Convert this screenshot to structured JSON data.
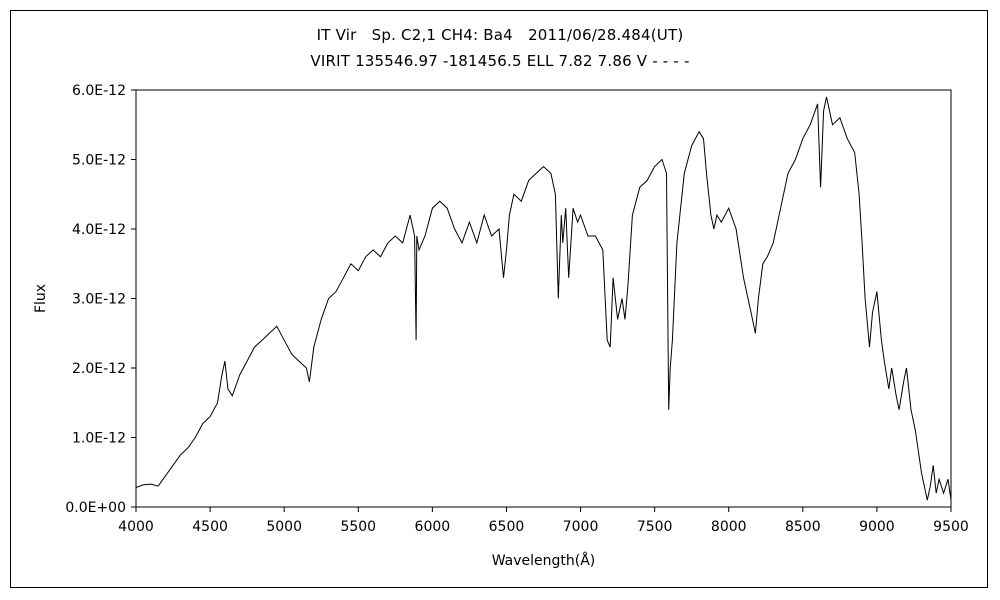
{
  "chart_data": {
    "type": "line",
    "title_line1": "IT Vir　Sp. C2,1 CH4: Ba4　2011/06/28.484(UT)",
    "title_line2": "VIRIT 135546.97 -181456.5 ELL 7.82 7.86 V - - - -",
    "xlabel": "Wavelength(Å)",
    "ylabel": "Flux",
    "xlim": [
      4000,
      9500
    ],
    "ylim": [
      0,
      6e-12
    ],
    "xticks": [
      4000,
      4500,
      5000,
      5500,
      6000,
      6500,
      7000,
      7500,
      8000,
      8500,
      9000,
      9500
    ],
    "xtick_labels": [
      "4000",
      "4500",
      "5000",
      "5500",
      "6000",
      "6500",
      "7000",
      "7500",
      "8000",
      "8500",
      "9000",
      "9500"
    ],
    "yticks": [
      0,
      1e-12,
      2e-12,
      3e-12,
      4e-12,
      5e-12,
      6e-12
    ],
    "ytick_labels": [
      "0.0E+00",
      "1.0E-12",
      "2.0E-12",
      "3.0E-12",
      "4.0E-12",
      "5.0E-12",
      "6.0E-12"
    ],
    "grid": false,
    "legend": "none",
    "line_color": "#000000",
    "series": [
      {
        "x": [
          4000,
          4050,
          4100,
          4150,
          4200,
          4250,
          4300,
          4350,
          4400,
          4450,
          4500,
          4550,
          4580,
          4600,
          4620,
          4650,
          4700,
          4750,
          4800,
          4850,
          4900,
          4950,
          5000,
          5050,
          5100,
          5150,
          5170,
          5200,
          5250,
          5300,
          5350,
          5400,
          5450,
          5500,
          5550,
          5600,
          5650,
          5700,
          5750,
          5800,
          5850,
          5880,
          5890,
          5895,
          5910,
          5950,
          6000,
          6050,
          6100,
          6150,
          6200,
          6250,
          6300,
          6350,
          6400,
          6450,
          6480,
          6500,
          6520,
          6550,
          6600,
          6650,
          6700,
          6750,
          6800,
          6830,
          6850,
          6870,
          6880,
          6900,
          6920,
          6950,
          6980,
          7000,
          7050,
          7100,
          7150,
          7180,
          7200,
          7220,
          7250,
          7280,
          7300,
          7320,
          7350,
          7400,
          7450,
          7500,
          7550,
          7580,
          7595,
          7605,
          7620,
          7650,
          7700,
          7750,
          7800,
          7830,
          7850,
          7880,
          7900,
          7920,
          7950,
          8000,
          8050,
          8100,
          8150,
          8180,
          8200,
          8230,
          8260,
          8300,
          8350,
          8400,
          8450,
          8500,
          8550,
          8600,
          8620,
          8640,
          8660,
          8700,
          8750,
          8800,
          8850,
          8880,
          8900,
          8920,
          8950,
          8970,
          9000,
          9030,
          9050,
          9080,
          9100,
          9130,
          9150,
          9180,
          9200,
          9230,
          9260,
          9280,
          9300,
          9320,
          9340,
          9360,
          9380,
          9400,
          9420,
          9450,
          9480,
          9500
        ],
        "y": [
          2.8e-13,
          3.2e-13,
          3.3e-13,
          3e-13,
          4.5e-13,
          6e-13,
          7.5e-13,
          8.5e-13,
          1e-12,
          1.2e-12,
          1.3e-12,
          1.5e-12,
          1.9e-12,
          2.1e-12,
          1.7e-12,
          1.6e-12,
          1.9e-12,
          2.1e-12,
          2.3e-12,
          2.4e-12,
          2.5e-12,
          2.6e-12,
          2.4e-12,
          2.2e-12,
          2.1e-12,
          2e-12,
          1.8e-12,
          2.3e-12,
          2.7e-12,
          3e-12,
          3.1e-12,
          3.3e-12,
          3.5e-12,
          3.4e-12,
          3.6e-12,
          3.7e-12,
          3.6e-12,
          3.8e-12,
          3.9e-12,
          3.8e-12,
          4.2e-12,
          3.9e-12,
          2.4e-12,
          3.9e-12,
          3.7e-12,
          3.9e-12,
          4.3e-12,
          4.4e-12,
          4.3e-12,
          4e-12,
          3.8e-12,
          4.1e-12,
          3.8e-12,
          4.2e-12,
          3.9e-12,
          4e-12,
          3.3e-12,
          3.7e-12,
          4.2e-12,
          4.5e-12,
          4.4e-12,
          4.7e-12,
          4.8e-12,
          4.9e-12,
          4.8e-12,
          4.5e-12,
          3e-12,
          4.2e-12,
          3.8e-12,
          4.3e-12,
          3.3e-12,
          4.3e-12,
          4.1e-12,
          4.2e-12,
          3.9e-12,
          3.9e-12,
          3.7e-12,
          2.4e-12,
          2.3e-12,
          3.3e-12,
          2.7e-12,
          3e-12,
          2.7e-12,
          3.2e-12,
          4.2e-12,
          4.6e-12,
          4.7e-12,
          4.9e-12,
          5e-12,
          4.8e-12,
          1.4e-12,
          2e-12,
          2.4e-12,
          3.8e-12,
          4.8e-12,
          5.2e-12,
          5.4e-12,
          5.3e-12,
          4.8e-12,
          4.2e-12,
          4e-12,
          4.2e-12,
          4.1e-12,
          4.3e-12,
          4e-12,
          3.3e-12,
          2.8e-12,
          2.5e-12,
          3e-12,
          3.5e-12,
          3.6e-12,
          3.8e-12,
          4.3e-12,
          4.8e-12,
          5e-12,
          5.3e-12,
          5.5e-12,
          5.8e-12,
          4.6e-12,
          5.7e-12,
          5.9e-12,
          5.5e-12,
          5.6e-12,
          5.3e-12,
          5.1e-12,
          4.5e-12,
          3.8e-12,
          3e-12,
          2.3e-12,
          2.8e-12,
          3.1e-12,
          2.4e-12,
          2.1e-12,
          1.7e-12,
          2e-12,
          1.6e-12,
          1.4e-12,
          1.8e-12,
          2e-12,
          1.4e-12,
          1.1e-12,
          8e-13,
          5e-13,
          3e-13,
          1e-13,
          3e-13,
          6e-13,
          2e-13,
          4e-13,
          2e-13,
          4e-13,
          1e-13
        ]
      }
    ]
  }
}
